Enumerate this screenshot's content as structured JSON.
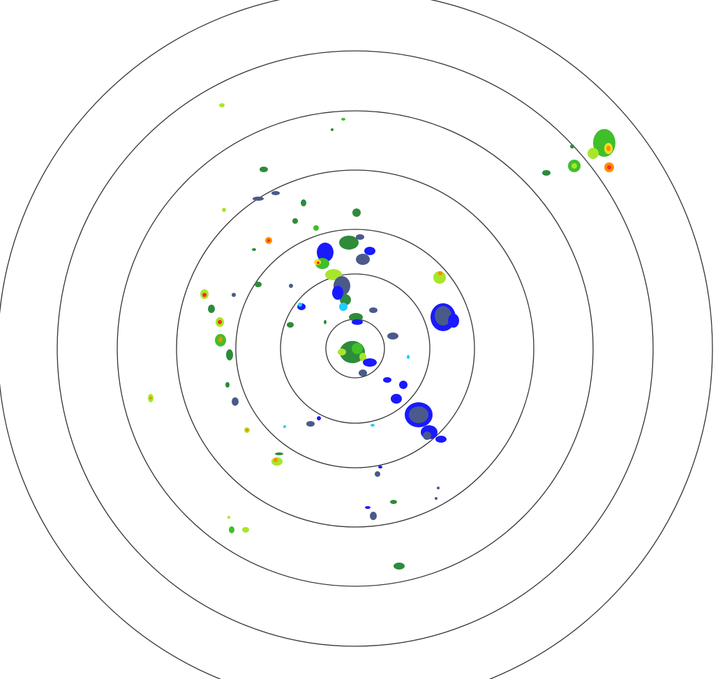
{
  "radar": {
    "ring_count": 7,
    "ring_color": "#333333",
    "background": "#ffffff",
    "echo_colors": {
      "light_blue": "#22ccff",
      "blue": "#1a1aff",
      "slate": "#4a5a8a",
      "dark_green": "#2e8b3a",
      "green": "#3fbf2a",
      "yellow_green": "#a8e62a",
      "yellow": "#f0e020",
      "orange": "#ff8c00",
      "red": "#ff2a1a"
    },
    "center_icon": "radar-site-icon"
  }
}
